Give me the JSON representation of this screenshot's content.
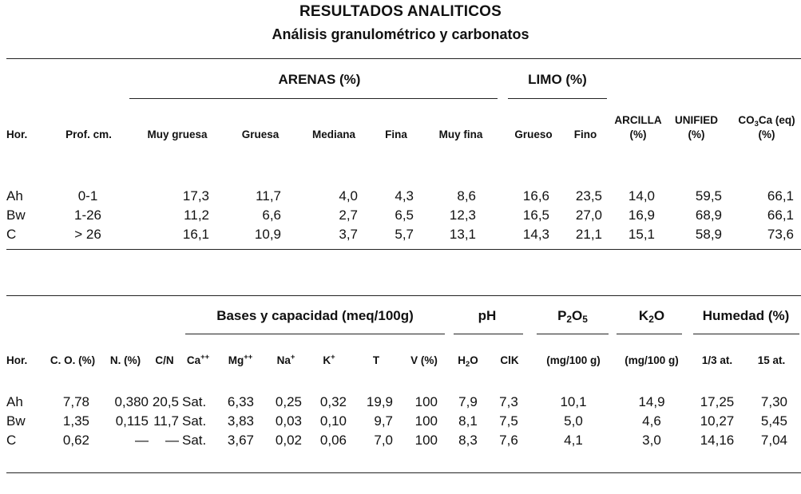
{
  "title": "RESULTADOS ANALITICOS",
  "subtitle": "Análisis granulométrico y carbonatos",
  "table1": {
    "groups": {
      "arenas": "ARENAS (%)",
      "limo": "LIMO (%)"
    },
    "headers": {
      "hor": "Hor.",
      "prof": "Prof. cm.",
      "muy_gruesa": "Muy gruesa",
      "gruesa": "Gruesa",
      "mediana": "Mediana",
      "fina": "Fina",
      "muy_fina": "Muy fina",
      "grueso": "Grueso",
      "fino": "Fino",
      "arcilla_1": "ARCILLA",
      "arcilla_2": "(%)",
      "unified_1": "UNIFIED",
      "unified_2": "(%)",
      "co3ca_a": "CO",
      "co3ca_sub": "3",
      "co3ca_b": "Ca (eq)",
      "co3ca_2": "(%)"
    },
    "rows": [
      [
        "Ah",
        "0-1",
        "17,3",
        "11,7",
        "4,0",
        "4,3",
        "8,6",
        "16,6",
        "23,5",
        "14,0",
        "59,5",
        "66,1"
      ],
      [
        "Bw",
        "1-26",
        "11,2",
        "6,6",
        "2,7",
        "6,5",
        "12,3",
        "16,5",
        "27,0",
        "16,9",
        "68,9",
        "66,1"
      ],
      [
        "C",
        "> 26",
        "16,1",
        "10,9",
        "3,7",
        "5,7",
        "13,1",
        "14,3",
        "21,1",
        "15,1",
        "58,9",
        "73,6"
      ]
    ]
  },
  "table2": {
    "groups": {
      "bases": "Bases y capacidad (meq/100g)",
      "ph": "pH",
      "p2o5_a": "P",
      "p2o5_s1": "2",
      "p2o5_b": "O",
      "p2o5_s2": "5",
      "k2o_a": "K",
      "k2o_s": "2",
      "k2o_b": "O",
      "humedad": "Humedad (%)"
    },
    "headers": {
      "hor": "Hor.",
      "co": "C. O. (%)",
      "n": "N. (%)",
      "cn": "C/N",
      "ca": "Ca",
      "ca_sup": "++",
      "mg": "Mg",
      "mg_sup": "++",
      "na": "Na",
      "na_sup": "+",
      "k": "K",
      "k_sup": "+",
      "t": "T",
      "v": "V (%)",
      "h2o_a": "H",
      "h2o_s": "2",
      "h2o_b": "O",
      "cik": "ClK",
      "p_unit": "(mg/100 g)",
      "k_unit": "(mg/100 g)",
      "h13": "1/3 at.",
      "h15": "15 at."
    },
    "rows": [
      [
        "Ah",
        "7,78",
        "0,380",
        "20,5",
        "Sat.",
        "6,33",
        "0,25",
        "0,32",
        "19,9",
        "100",
        "7,9",
        "7,3",
        "10,1",
        "14,9",
        "17,25",
        "7,30"
      ],
      [
        "Bw",
        "1,35",
        "0,115",
        "11,7",
        "Sat.",
        "3,83",
        "0,03",
        "0,10",
        "9,7",
        "100",
        "8,1",
        "7,5",
        "5,0",
        "4,6",
        "10,27",
        "5,45"
      ],
      [
        "C",
        "0,62",
        "—",
        "—",
        "Sat.",
        "3,67",
        "0,02",
        "0,06",
        "7,0",
        "100",
        "8,3",
        "7,6",
        "4,1",
        "3,0",
        "14,16",
        "7,04"
      ]
    ]
  }
}
